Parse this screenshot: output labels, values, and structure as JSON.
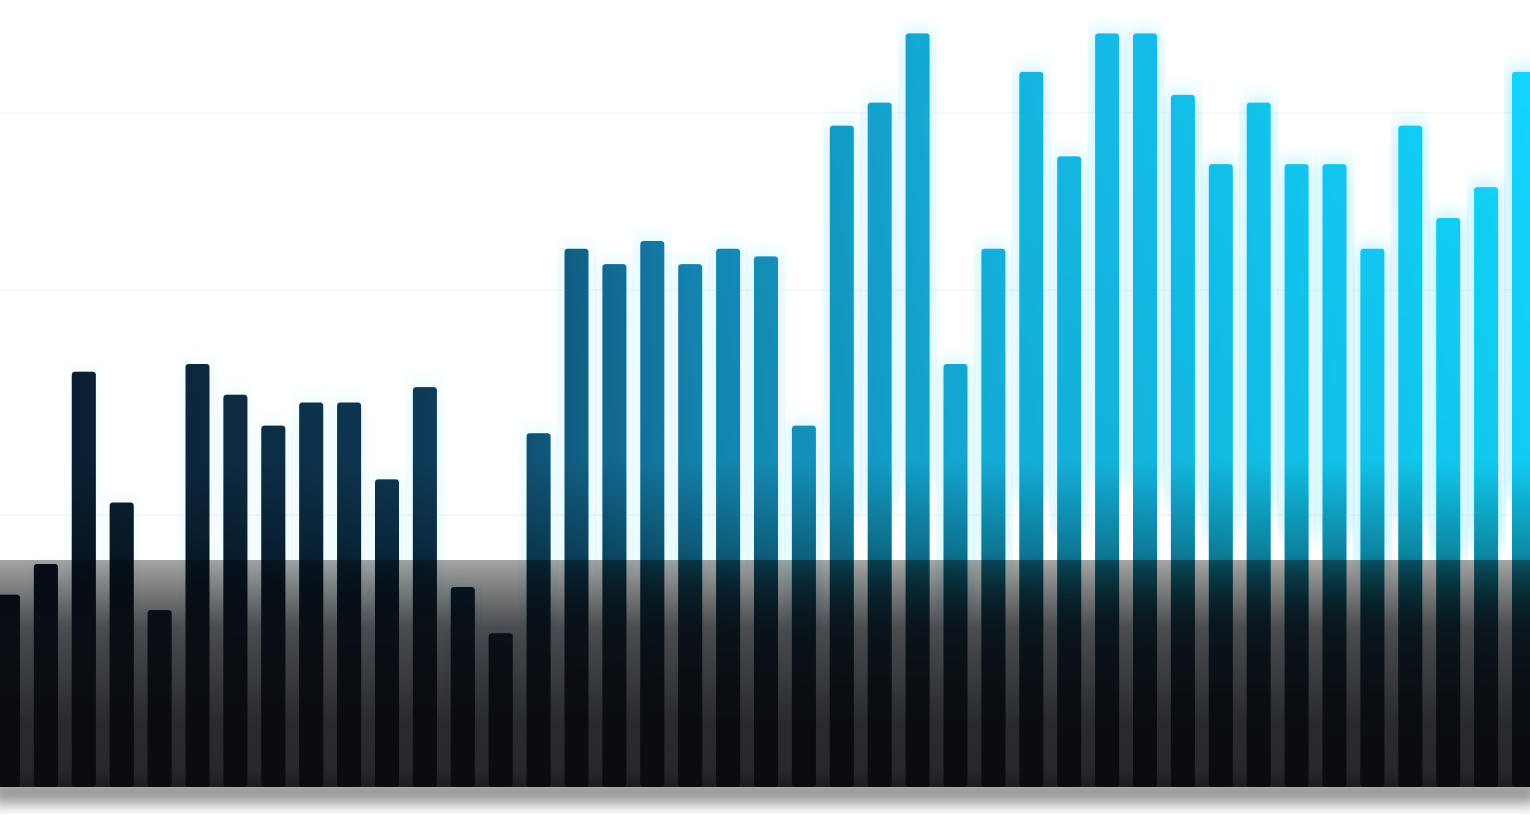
{
  "chart_data": {
    "type": "bar",
    "ylim": [
      0,
      100
    ],
    "grid": true,
    "legend": "none",
    "values": [
      25,
      29,
      54,
      37,
      23,
      55,
      51,
      47,
      50,
      50,
      40,
      52,
      26,
      20,
      46,
      70,
      68,
      71,
      68,
      70,
      69,
      47,
      86,
      89,
      98,
      55,
      70,
      93,
      82,
      98,
      98,
      90,
      81,
      89,
      81,
      81,
      70,
      86,
      74,
      78,
      93
    ],
    "colors": {
      "dark": "#0f2940",
      "mid": "#1491c0",
      "bright": "#12d2ff",
      "base": "#0c0f14",
      "grid": "#eef1f4"
    }
  }
}
